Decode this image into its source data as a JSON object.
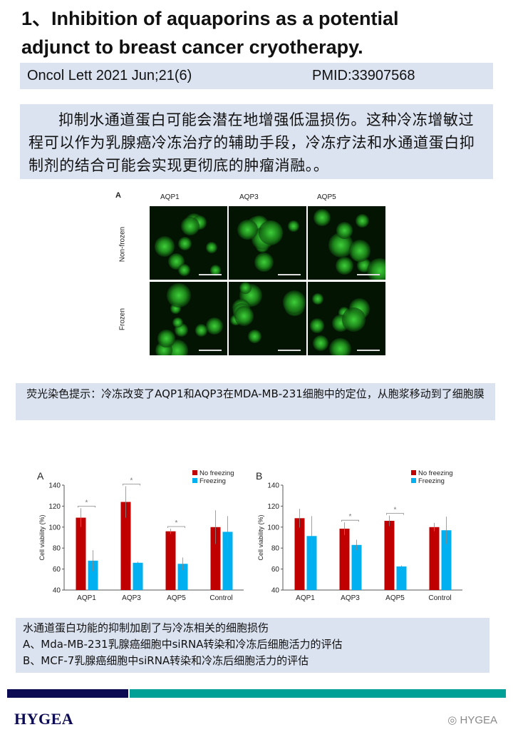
{
  "title": {
    "line1": "1、Inhibition of aquaporins as a potential",
    "line2": "adjunct to breast cancer cryotherapy."
  },
  "info": {
    "journal": "Oncol Lett 2021 Jun;21(6)",
    "pmid": "PMID:33907568"
  },
  "summary": "抑制水通道蛋白可能会潜在地增强低温损伤。这种冷冻增敏过程可以作为乳腺癌冷冻治疗的辅助手段，冷冻疗法和水通道蛋白抑制剂的结合可能会实现更彻底的肿瘤消融。。",
  "figure1": {
    "panel_letter": "A",
    "columns": [
      "AQP1",
      "AQP3",
      "AQP5"
    ],
    "rows": [
      "Non-frozen",
      "Frozen"
    ]
  },
  "caption1": "荧光染色提示：冷冻改变了AQP1和AQP3在MDA-MB-231细胞中的定位，从胞浆移动到了细胞膜",
  "chart_data": [
    {
      "type": "bar",
      "panel": "A",
      "categories": [
        "AQP1",
        "AQP3",
        "AQP5",
        "Control"
      ],
      "ylabel": "Cell viability (%)",
      "ylim": [
        40,
        140
      ],
      "yticks": [
        40,
        60,
        80,
        100,
        120,
        140
      ],
      "series": [
        {
          "name": "No freezing",
          "color": "#c00000",
          "values": [
            109,
            124,
            96,
            100
          ],
          "errors": [
            9,
            15,
            2.5,
            16
          ]
        },
        {
          "name": "Freezing",
          "color": "#00b0f0",
          "values": [
            68,
            66,
            65,
            95.5
          ],
          "errors": [
            10,
            1,
            6,
            15
          ]
        }
      ],
      "significance": [
        true,
        true,
        true,
        false
      ],
      "significance_mark": "*",
      "legend": "top-right"
    },
    {
      "type": "bar",
      "panel": "B",
      "categories": [
        "AQP1",
        "AQP3",
        "AQP5",
        "Control"
      ],
      "ylabel": "Cell viability (%)",
      "ylim": [
        40,
        140
      ],
      "yticks": [
        40,
        60,
        80,
        100,
        120,
        140
      ],
      "series": [
        {
          "name": "No freezing",
          "color": "#c00000",
          "values": [
            108.5,
            98.5,
            106,
            100
          ],
          "errors": [
            9,
            6,
            5,
            4
          ]
        },
        {
          "name": "Freezing",
          "color": "#00b0f0",
          "values": [
            91.5,
            83,
            62.5,
            97
          ],
          "errors": [
            19,
            5,
            1,
            13
          ]
        }
      ],
      "significance": [
        false,
        true,
        true,
        false
      ],
      "significance_mark": "*",
      "legend": "top-right"
    }
  ],
  "caption2": {
    "line1": "水通道蛋白功能的抑制加剧了与冷冻相关的细胞损伤",
    "line2": "A、Mda-MB-231乳腺癌细胞中siRNA转染和冷冻后细胞活力的评估",
    "line3": "B、MCF-7乳腺癌细胞中siRNA转染和冷冻后细胞活力的评估"
  },
  "footer": {
    "logo": "HYGEA",
    "watermark": "HYGEA"
  }
}
